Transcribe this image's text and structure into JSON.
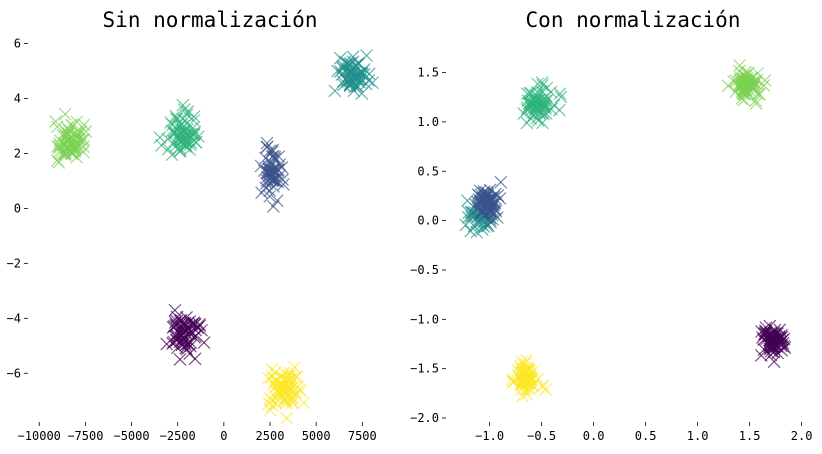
{
  "chart_data": [
    {
      "type": "scatter",
      "title": "Sin normalización",
      "xlabel": "",
      "ylabel": "",
      "xlim": [
        -10500,
        9000
      ],
      "ylim": [
        -7.7,
        6.2
      ],
      "xticks": [
        -10000,
        -7500,
        -5000,
        -2500,
        0,
        2500,
        5000,
        7500
      ],
      "yticks": [
        -6,
        -4,
        -2,
        0,
        2,
        4,
        6
      ],
      "grid": false,
      "marker": "x",
      "clusters": [
        {
          "color": "#440154",
          "center": [
            -2200,
            -4.5
          ],
          "spread": [
            420,
            0.38
          ],
          "n": 70
        },
        {
          "color": "#3b528b",
          "center": [
            2600,
            1.3
          ],
          "spread": [
            280,
            0.45
          ],
          "n": 60
        },
        {
          "color": "#21908d",
          "center": [
            7000,
            4.9
          ],
          "spread": [
            380,
            0.35
          ],
          "n": 70
        },
        {
          "color": "#2fb47c",
          "center": [
            -2300,
            2.6
          ],
          "spread": [
            380,
            0.45
          ],
          "n": 70
        },
        {
          "color": "#7ad151",
          "center": [
            -8300,
            2.4
          ],
          "spread": [
            430,
            0.35
          ],
          "n": 70
        },
        {
          "color": "#fde725",
          "center": [
            3300,
            -6.6
          ],
          "spread": [
            420,
            0.35
          ],
          "n": 70
        }
      ]
    },
    {
      "type": "scatter",
      "title": "Con normalización",
      "xlabel": "",
      "ylabel": "",
      "xlim": [
        -1.4,
        2.1
      ],
      "ylim": [
        -2.02,
        1.85
      ],
      "xticks": [
        -1.0,
        -0.5,
        0.0,
        0.5,
        1.0,
        1.5,
        2.0
      ],
      "yticks": [
        -2.0,
        -1.5,
        -1.0,
        -0.5,
        0.0,
        0.5,
        1.0,
        1.5
      ],
      "grid": false,
      "marker": "x",
      "clusters": [
        {
          "color": "#440154",
          "center": [
            1.73,
            -1.23
          ],
          "spread": [
            0.06,
            0.08
          ],
          "n": 70
        },
        {
          "color": "#21908d",
          "center": [
            -1.07,
            0.1
          ],
          "spread": [
            0.06,
            0.09
          ],
          "n": 70
        },
        {
          "color": "#3b528b",
          "center": [
            -1.03,
            0.2
          ],
          "spread": [
            0.05,
            0.09
          ],
          "n": 60
        },
        {
          "color": "#2fb47c",
          "center": [
            -0.52,
            1.18
          ],
          "spread": [
            0.07,
            0.09
          ],
          "n": 70
        },
        {
          "color": "#7ad151",
          "center": [
            1.47,
            1.38
          ],
          "spread": [
            0.07,
            0.07
          ],
          "n": 70
        },
        {
          "color": "#fde725",
          "center": [
            -0.64,
            -1.6
          ],
          "spread": [
            0.06,
            0.08
          ],
          "n": 70
        }
      ]
    }
  ]
}
